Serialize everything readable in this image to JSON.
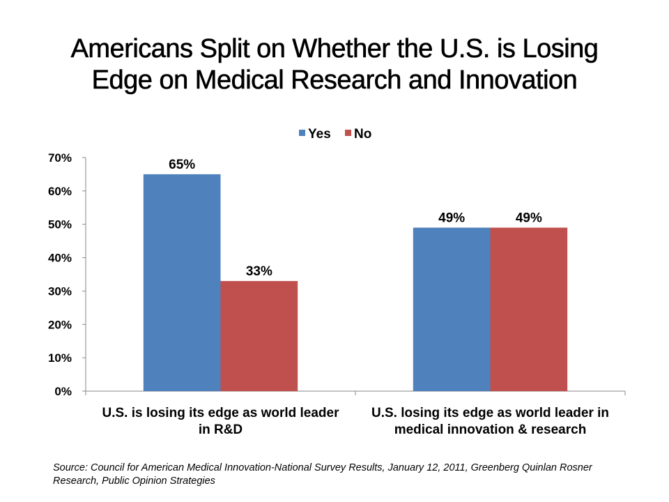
{
  "chart_data": {
    "type": "bar",
    "title": "Americans Split on Whether the U.S. is Losing Edge on Medical Research and Innovation",
    "title_lines": [
      "Americans Split on Whether the U.S. is Losing",
      "Edge on Medical Research and Innovation"
    ],
    "categories": [
      [
        "U.S. is losing its edge as world leader",
        "in R&D"
      ],
      [
        "U.S. losing its edge as world leader in",
        "medical innovation & research"
      ]
    ],
    "series": [
      {
        "name": "Yes",
        "color": "#4F81BD",
        "values": [
          65,
          49
        ],
        "labels": [
          "65%",
          "49%"
        ]
      },
      {
        "name": "No",
        "color": "#C0504D",
        "values": [
          33,
          49
        ],
        "labels": [
          "33%",
          "49%"
        ]
      }
    ],
    "xlabel": "",
    "ylabel": "",
    "ylim": [
      0,
      70
    ],
    "yticks": [
      0,
      10,
      20,
      30,
      40,
      50,
      60,
      70
    ],
    "ytick_labels": [
      "0%",
      "10%",
      "20%",
      "30%",
      "40%",
      "50%",
      "60%",
      "70%"
    ],
    "grid": false,
    "legend_position": "top-center"
  },
  "source": "Source: Council for American Medical Innovation-National Survey Results, January 12, 2011, Greenberg Quinlan Rosner Research, Public Opinion Strategies"
}
